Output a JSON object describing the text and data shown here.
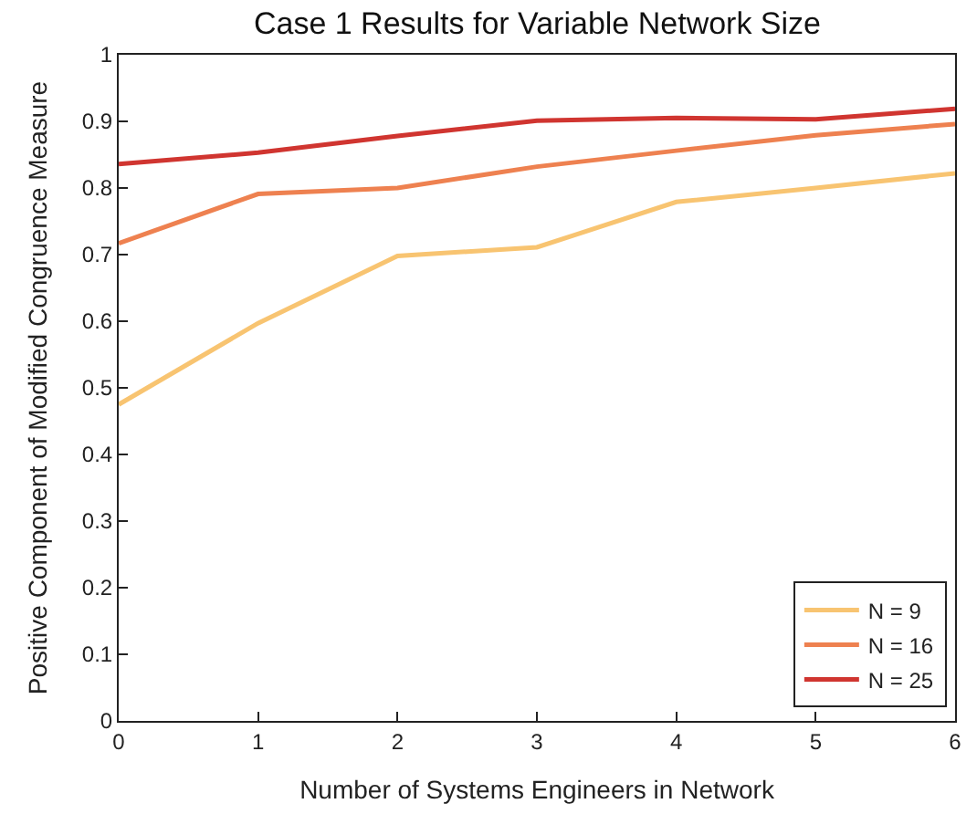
{
  "chart_data": {
    "type": "line",
    "title": "Case 1 Results for Variable Network Size",
    "xlabel": "Number of Systems Engineers in Network",
    "ylabel": "Positive Component of Modified Congruence Measure",
    "x": [
      0,
      1,
      2,
      3,
      4,
      5,
      6
    ],
    "series": [
      {
        "name": "N = 9",
        "color": "#f8c471",
        "values": [
          0.475,
          0.597,
          0.698,
          0.711,
          0.779,
          0.8,
          0.822
        ]
      },
      {
        "name": "N = 16",
        "color": "#ee8150",
        "values": [
          0.717,
          0.791,
          0.8,
          0.832,
          0.856,
          0.879,
          0.896
        ]
      },
      {
        "name": "N = 25",
        "color": "#d03530",
        "values": [
          0.836,
          0.853,
          0.878,
          0.901,
          0.905,
          0.903,
          0.919
        ]
      }
    ],
    "xlim": [
      0,
      6
    ],
    "xticks": [
      0,
      1,
      2,
      3,
      4,
      5,
      6
    ],
    "ylim": [
      0,
      1
    ],
    "yticks": [
      0,
      0.1,
      0.2,
      0.3,
      0.4,
      0.5,
      0.6,
      0.7,
      0.8,
      0.9,
      1
    ],
    "legend": "bottom right"
  }
}
